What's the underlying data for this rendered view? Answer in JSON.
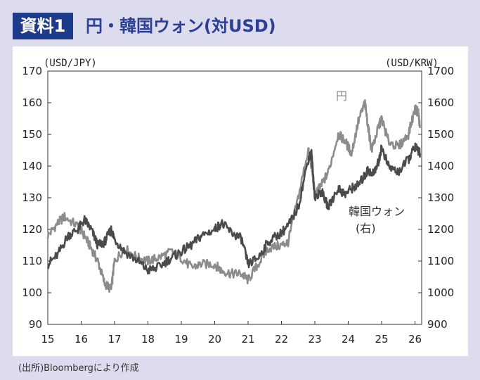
{
  "header": {
    "badge": "資料1",
    "title": "円・韓国ウォン(対USD)"
  },
  "source_note": "(出所)Bloombergにより作成",
  "colors": {
    "jpy": "#8c8c8c",
    "krw": "#4a4a4a",
    "badge_bg": "#1e3a8a",
    "title": "#2a3f95"
  },
  "chart_data": {
    "type": "line",
    "title": "円・韓国ウォン(対USD)",
    "left_axis_label": "(USD/JPY)",
    "right_axis_label": "(USD/KRW)",
    "left_ylim": [
      90,
      170
    ],
    "right_ylim": [
      900,
      1700
    ],
    "left_ticks": [
      90,
      100,
      110,
      120,
      130,
      140,
      150,
      160,
      170
    ],
    "right_ticks": [
      900,
      1000,
      1100,
      1200,
      1300,
      1400,
      1500,
      1600,
      1700
    ],
    "xlim": [
      15,
      26.2
    ],
    "x_ticks": [
      "15",
      "16",
      "17",
      "18",
      "19",
      "20",
      "21",
      "22",
      "23",
      "24",
      "25",
      "26"
    ],
    "series": [
      {
        "name": "円",
        "axis": "left",
        "x": [
          15.0,
          15.3,
          15.5,
          15.9,
          16.1,
          16.3,
          16.5,
          16.7,
          16.9,
          17.0,
          17.3,
          17.7,
          18.0,
          18.3,
          18.7,
          19.0,
          19.3,
          19.6,
          20.0,
          20.2,
          20.5,
          20.8,
          21.0,
          21.3,
          21.6,
          22.0,
          22.2,
          22.5,
          22.8,
          22.9,
          23.0,
          23.2,
          23.4,
          23.7,
          23.9,
          24.1,
          24.3,
          24.5,
          24.6,
          24.7,
          24.9,
          25.0,
          25.2,
          25.5,
          25.8,
          26.0,
          26.1,
          26.15
        ],
        "values": [
          118,
          122,
          124,
          121,
          118,
          114,
          110,
          103,
          101,
          110,
          114,
          111,
          110,
          111,
          113,
          111,
          108,
          109,
          109,
          107,
          106,
          106,
          104,
          109,
          114,
          115,
          116,
          130,
          145,
          140,
          131,
          134,
          138,
          150,
          148,
          144,
          154,
          160,
          152,
          145,
          152,
          155,
          148,
          146,
          150,
          158,
          157,
          152
        ]
      },
      {
        "name": "韓国ウォン(右)",
        "axis": "right",
        "x": [
          15.0,
          15.3,
          15.6,
          15.9,
          16.1,
          16.3,
          16.5,
          16.7,
          16.9,
          17.0,
          17.3,
          17.7,
          18.0,
          18.3,
          18.7,
          19.0,
          19.3,
          19.6,
          20.0,
          20.2,
          20.5,
          20.8,
          21.0,
          21.3,
          21.6,
          22.0,
          22.2,
          22.5,
          22.8,
          22.9,
          23.0,
          23.2,
          23.4,
          23.7,
          23.9,
          24.1,
          24.3,
          24.5,
          24.6,
          24.7,
          24.9,
          25.0,
          25.2,
          25.5,
          25.8,
          26.0,
          26.1,
          26.15
        ],
        "values": [
          1090,
          1120,
          1180,
          1200,
          1230,
          1200,
          1150,
          1160,
          1200,
          1170,
          1130,
          1100,
          1070,
          1080,
          1110,
          1130,
          1150,
          1180,
          1200,
          1220,
          1190,
          1170,
          1090,
          1110,
          1160,
          1190,
          1210,
          1270,
          1420,
          1440,
          1300,
          1320,
          1270,
          1330,
          1310,
          1330,
          1340,
          1370,
          1390,
          1370,
          1410,
          1460,
          1400,
          1380,
          1420,
          1460,
          1450,
          1440
        ]
      }
    ],
    "annotations": [
      "円",
      "韓国ウォン",
      "(右)"
    ]
  }
}
